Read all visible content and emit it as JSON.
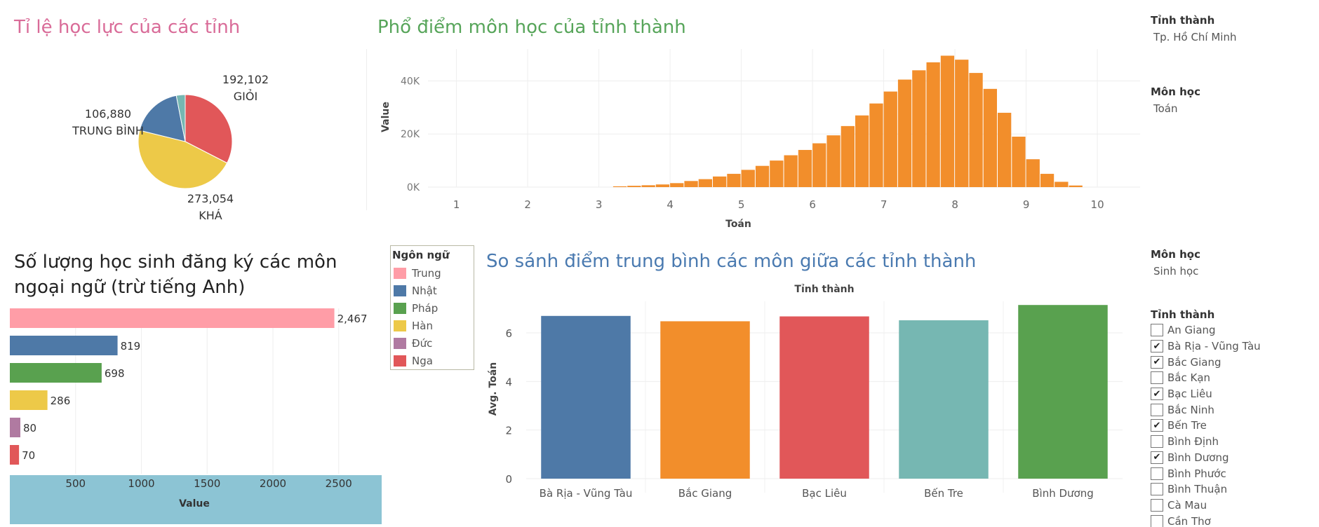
{
  "pie": {
    "title": "Tỉ lệ học lực của các tỉnh",
    "chart_data": {
      "type": "pie",
      "title": "Tỉ lệ học lực của các tỉnh",
      "slices": [
        {
          "label": "GIỎI",
          "value": 192102,
          "display": "192,102",
          "color": "#e15759"
        },
        {
          "label": "KHÁ",
          "value": 273054,
          "display": "273,054",
          "color": "#edc948"
        },
        {
          "label": "TRUNG BÌNH",
          "value": 106880,
          "display": "106,880",
          "color": "#4e79a7"
        },
        {
          "label": "",
          "value": 18000,
          "display": "",
          "color": "#76b7b2"
        }
      ]
    }
  },
  "histogram": {
    "title": "Phổ điểm môn học của tỉnh thành",
    "chart_data": {
      "type": "bar",
      "title": "Phổ điểm môn học của tỉnh thành",
      "xlabel": "Toán",
      "ylabel": "Value",
      "xlim": [
        0.6,
        10.6
      ],
      "ylim": [
        0,
        52000
      ],
      "yticks": [
        {
          "v": 0,
          "label": "0K"
        },
        {
          "v": 20000,
          "label": "20K"
        },
        {
          "v": 40000,
          "label": "40K"
        }
      ],
      "xticks": [
        "1",
        "2",
        "3",
        "4",
        "5",
        "6",
        "7",
        "8",
        "9",
        "10"
      ],
      "bin_width": 0.2,
      "bins": [
        {
          "x": 3.2,
          "v": 300
        },
        {
          "x": 3.4,
          "v": 500
        },
        {
          "x": 3.6,
          "v": 700
        },
        {
          "x": 3.8,
          "v": 1000
        },
        {
          "x": 4.0,
          "v": 1500
        },
        {
          "x": 4.2,
          "v": 2300
        },
        {
          "x": 4.4,
          "v": 3000
        },
        {
          "x": 4.6,
          "v": 4000
        },
        {
          "x": 4.8,
          "v": 5000
        },
        {
          "x": 5.0,
          "v": 6500
        },
        {
          "x": 5.2,
          "v": 8000
        },
        {
          "x": 5.4,
          "v": 10000
        },
        {
          "x": 5.6,
          "v": 12000
        },
        {
          "x": 5.8,
          "v": 14000
        },
        {
          "x": 6.0,
          "v": 16500
        },
        {
          "x": 6.2,
          "v": 19500
        },
        {
          "x": 6.4,
          "v": 23000
        },
        {
          "x": 6.6,
          "v": 27000
        },
        {
          "x": 6.8,
          "v": 31500
        },
        {
          "x": 7.0,
          "v": 36000
        },
        {
          "x": 7.2,
          "v": 40500
        },
        {
          "x": 7.4,
          "v": 44000
        },
        {
          "x": 7.6,
          "v": 47000
        },
        {
          "x": 7.8,
          "v": 49500
        },
        {
          "x": 8.0,
          "v": 48000
        },
        {
          "x": 8.2,
          "v": 43000
        },
        {
          "x": 8.4,
          "v": 37000
        },
        {
          "x": 8.6,
          "v": 28000
        },
        {
          "x": 8.8,
          "v": 19000
        },
        {
          "x": 9.0,
          "v": 10500
        },
        {
          "x": 9.2,
          "v": 5000
        },
        {
          "x": 9.4,
          "v": 2000
        },
        {
          "x": 9.6,
          "v": 600
        }
      ],
      "color": "#f28e2b"
    }
  },
  "filters_top": [
    {
      "label": "Tỉnh thành",
      "value": "Tp. Hồ Chí Minh"
    },
    {
      "label": "Môn học",
      "value": "Toán"
    }
  ],
  "languages": {
    "title": "Số lượng học sinh đăng ký các môn ngoại ngữ (trừ tiếng Anh)",
    "chart_data": {
      "type": "bar",
      "orientation": "horizontal",
      "title": "Số lượng học sinh đăng ký các môn ngoại ngữ (trừ tiếng Anh)",
      "xlabel": "Value",
      "xlim": [
        0,
        2800
      ],
      "xticks": [
        500,
        1000,
        1500,
        2000,
        2500
      ],
      "categories": [
        "Trung",
        "Nhật",
        "Pháp",
        "Hàn",
        "Đức",
        "Nga"
      ],
      "values": [
        2467,
        819,
        698,
        286,
        80,
        70
      ],
      "labels": [
        "2,467",
        "819",
        "698",
        "286",
        "80",
        "70"
      ],
      "colors": [
        "#ff9da7",
        "#4e79a7",
        "#59a14f",
        "#edc948",
        "#b07aa1",
        "#e15759"
      ]
    }
  },
  "legend": {
    "title": "Ngôn ngữ",
    "items": [
      {
        "label": "Trung",
        "color": "#ff9da7"
      },
      {
        "label": "Nhật",
        "color": "#4e79a7"
      },
      {
        "label": "Pháp",
        "color": "#59a14f"
      },
      {
        "label": "Hàn",
        "color": "#edc948"
      },
      {
        "label": "Đức",
        "color": "#b07aa1"
      },
      {
        "label": "Nga",
        "color": "#e15759"
      }
    ]
  },
  "compare": {
    "title": "So sánh điểm trung bình các môn giữa các tỉnh thành",
    "chart_data": {
      "type": "bar",
      "title": "So sánh điểm trung bình các môn giữa các tỉnh thành",
      "header": "Tỉnh thành",
      "ylabel": "Avg. Toán",
      "ylim": [
        0,
        7.3
      ],
      "yticks": [
        0,
        2,
        4,
        6
      ],
      "categories": [
        "Bà Rịa - Vũng Tàu",
        "Bắc Giang",
        "Bạc Liêu",
        "Bến Tre",
        "Bình Dương"
      ],
      "values": [
        6.7,
        6.48,
        6.68,
        6.52,
        7.15
      ],
      "colors": [
        "#4e79a7",
        "#f28e2b",
        "#e15759",
        "#76b7b2",
        "#59a14f"
      ]
    }
  },
  "filter_subject": {
    "label": "Môn học",
    "value": "Sinh học"
  },
  "province_filter": {
    "label": "Tỉnh thành",
    "items": [
      {
        "name": "An Giang",
        "checked": false
      },
      {
        "name": "Bà Rịa - Vũng Tàu",
        "checked": true
      },
      {
        "name": "Bắc Giang",
        "checked": true
      },
      {
        "name": "Bắc Kạn",
        "checked": false
      },
      {
        "name": "Bạc Liêu",
        "checked": true
      },
      {
        "name": "Bắc Ninh",
        "checked": false
      },
      {
        "name": "Bến Tre",
        "checked": true
      },
      {
        "name": "Bình Định",
        "checked": false
      },
      {
        "name": "Bình Dương",
        "checked": true
      },
      {
        "name": "Bình Phước",
        "checked": false
      },
      {
        "name": "Bình Thuận",
        "checked": false
      },
      {
        "name": "Cà Mau",
        "checked": false
      },
      {
        "name": "Cần Thơ",
        "checked": false
      }
    ]
  }
}
